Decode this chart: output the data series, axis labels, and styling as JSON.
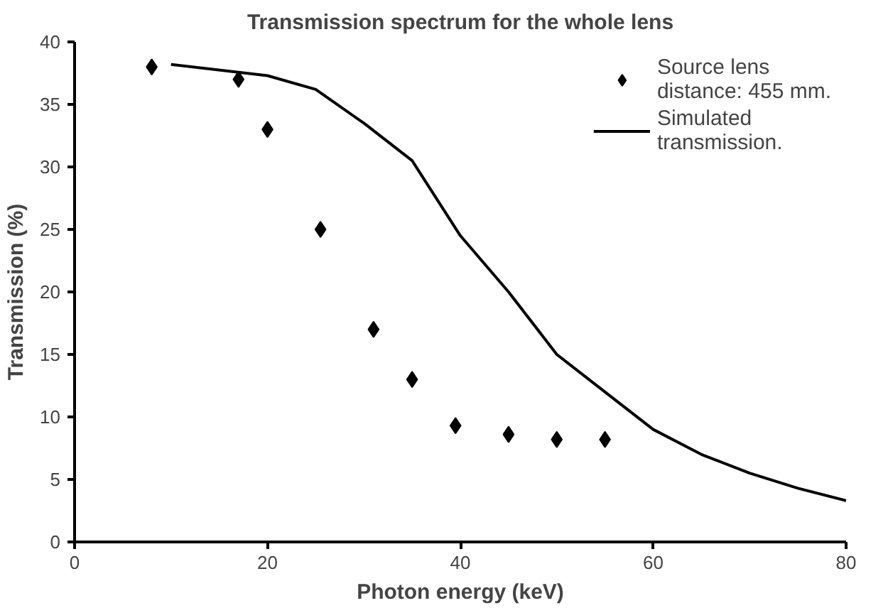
{
  "chart_data": {
    "type": "scatter",
    "title": "Transmission spectrum for the whole lens",
    "xlabel": "Photon energy (keV)",
    "ylabel": "Transmission (%)",
    "xlim": [
      0,
      80
    ],
    "xticks": [
      0,
      20,
      40,
      60,
      80
    ],
    "ylim": [
      0,
      40
    ],
    "yticks": [
      0,
      5,
      10,
      15,
      20,
      25,
      30,
      35,
      40
    ],
    "grid": false,
    "legend": "top right",
    "series": [
      {
        "name": "Source lens distance: 455 mm.",
        "marker": "diamond",
        "color": "#000000",
        "x": [
          8,
          17,
          20,
          25.5,
          31,
          35,
          39.5,
          45,
          50,
          55
        ],
        "values": [
          38,
          37,
          33,
          25,
          17,
          13,
          9.3,
          8.6,
          8.2,
          8.2
        ]
      },
      {
        "name": "Simulated transmission.",
        "type": "line",
        "line_style": "solid",
        "color": "#000000",
        "x": [
          10,
          20,
          25,
          30,
          35,
          40,
          45,
          50,
          55,
          60,
          65,
          70,
          75,
          80
        ],
        "values": [
          38.2,
          37.3,
          36.2,
          33.5,
          30.5,
          24.5,
          20,
          15,
          12,
          9,
          7,
          5.5,
          4.3,
          3.3
        ]
      }
    ]
  }
}
